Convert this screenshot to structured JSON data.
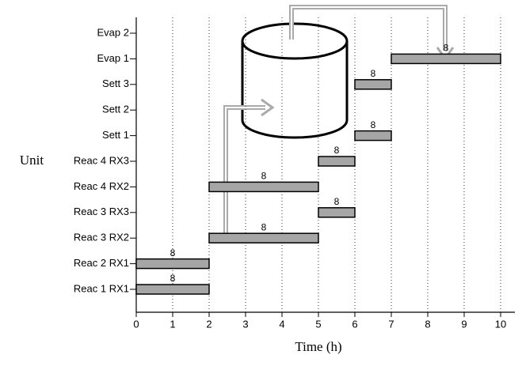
{
  "chart_data": {
    "type": "gantt",
    "y_label": "Unit",
    "x_label": "Time (h)",
    "categories": [
      "Evap 2",
      "Evap 1",
      "Sett 3",
      "Sett 2",
      "Sett 1",
      "Reac 4 RX3",
      "Reac 4 RX2",
      "Reac 3 RX3",
      "Reac 3 RX2",
      "Reac 2 RX1",
      "Reac 1 RX1"
    ],
    "tasks": [
      {
        "unit": "Reac 1 RX1",
        "start": 0,
        "end": 2,
        "size": 8
      },
      {
        "unit": "Reac 2 RX1",
        "start": 0,
        "end": 2,
        "size": 8
      },
      {
        "unit": "Reac 3 RX2",
        "start": 2,
        "end": 5,
        "size": 8
      },
      {
        "unit": "Reac 3 RX3",
        "start": 5,
        "end": 6,
        "size": 8
      },
      {
        "unit": "Reac 4 RX2",
        "start": 2,
        "end": 5,
        "size": 8
      },
      {
        "unit": "Reac 4 RX3",
        "start": 5,
        "end": 6,
        "size": 8
      },
      {
        "unit": "Sett 1",
        "start": 6,
        "end": 7,
        "size": 8
      },
      {
        "unit": "Sett 3",
        "start": 6,
        "end": 7,
        "size": 8
      },
      {
        "unit": "Evap 1",
        "start": 7,
        "end": 10,
        "size": 8
      }
    ],
    "color": "#a6a6a6",
    "xlim": [
      0,
      10
    ],
    "xticks": [
      0,
      1,
      2,
      3,
      4,
      5,
      6,
      7,
      8,
      9,
      10
    ],
    "grid": true
  }
}
